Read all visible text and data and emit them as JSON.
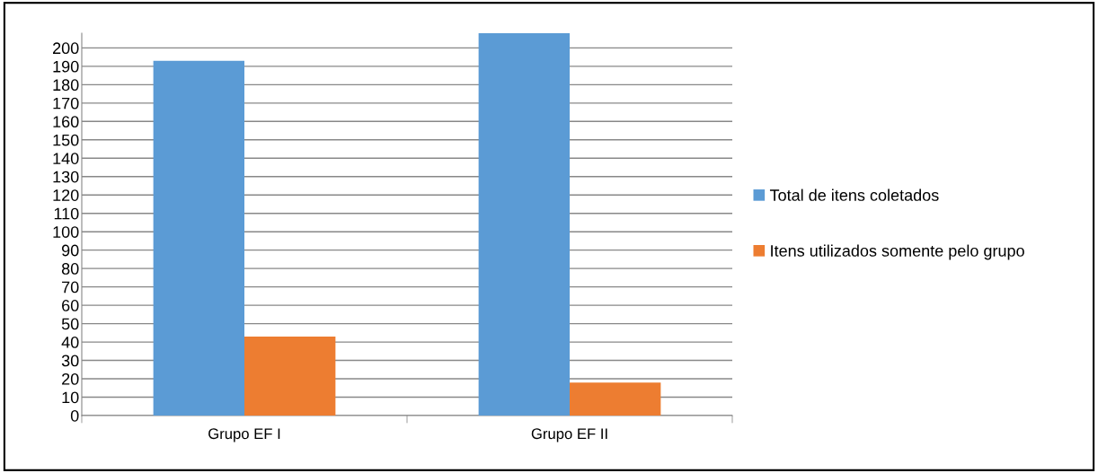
{
  "chart_data": {
    "type": "bar",
    "categories": [
      "Grupo EF I",
      "Grupo EF II"
    ],
    "series": [
      {
        "name": "Total de itens coletados",
        "color": "#5b9bd5",
        "values": [
          193,
          208
        ]
      },
      {
        "name": "Itens utilizados somente pelo grupo",
        "color": "#ed7d31",
        "values": [
          43,
          18
        ]
      }
    ],
    "ylim": [
      0,
      208
    ],
    "yticks": [
      0,
      10,
      20,
      30,
      40,
      50,
      60,
      70,
      80,
      90,
      100,
      110,
      120,
      130,
      140,
      150,
      160,
      170,
      180,
      190,
      200
    ],
    "grid": "y",
    "legend": "right"
  }
}
